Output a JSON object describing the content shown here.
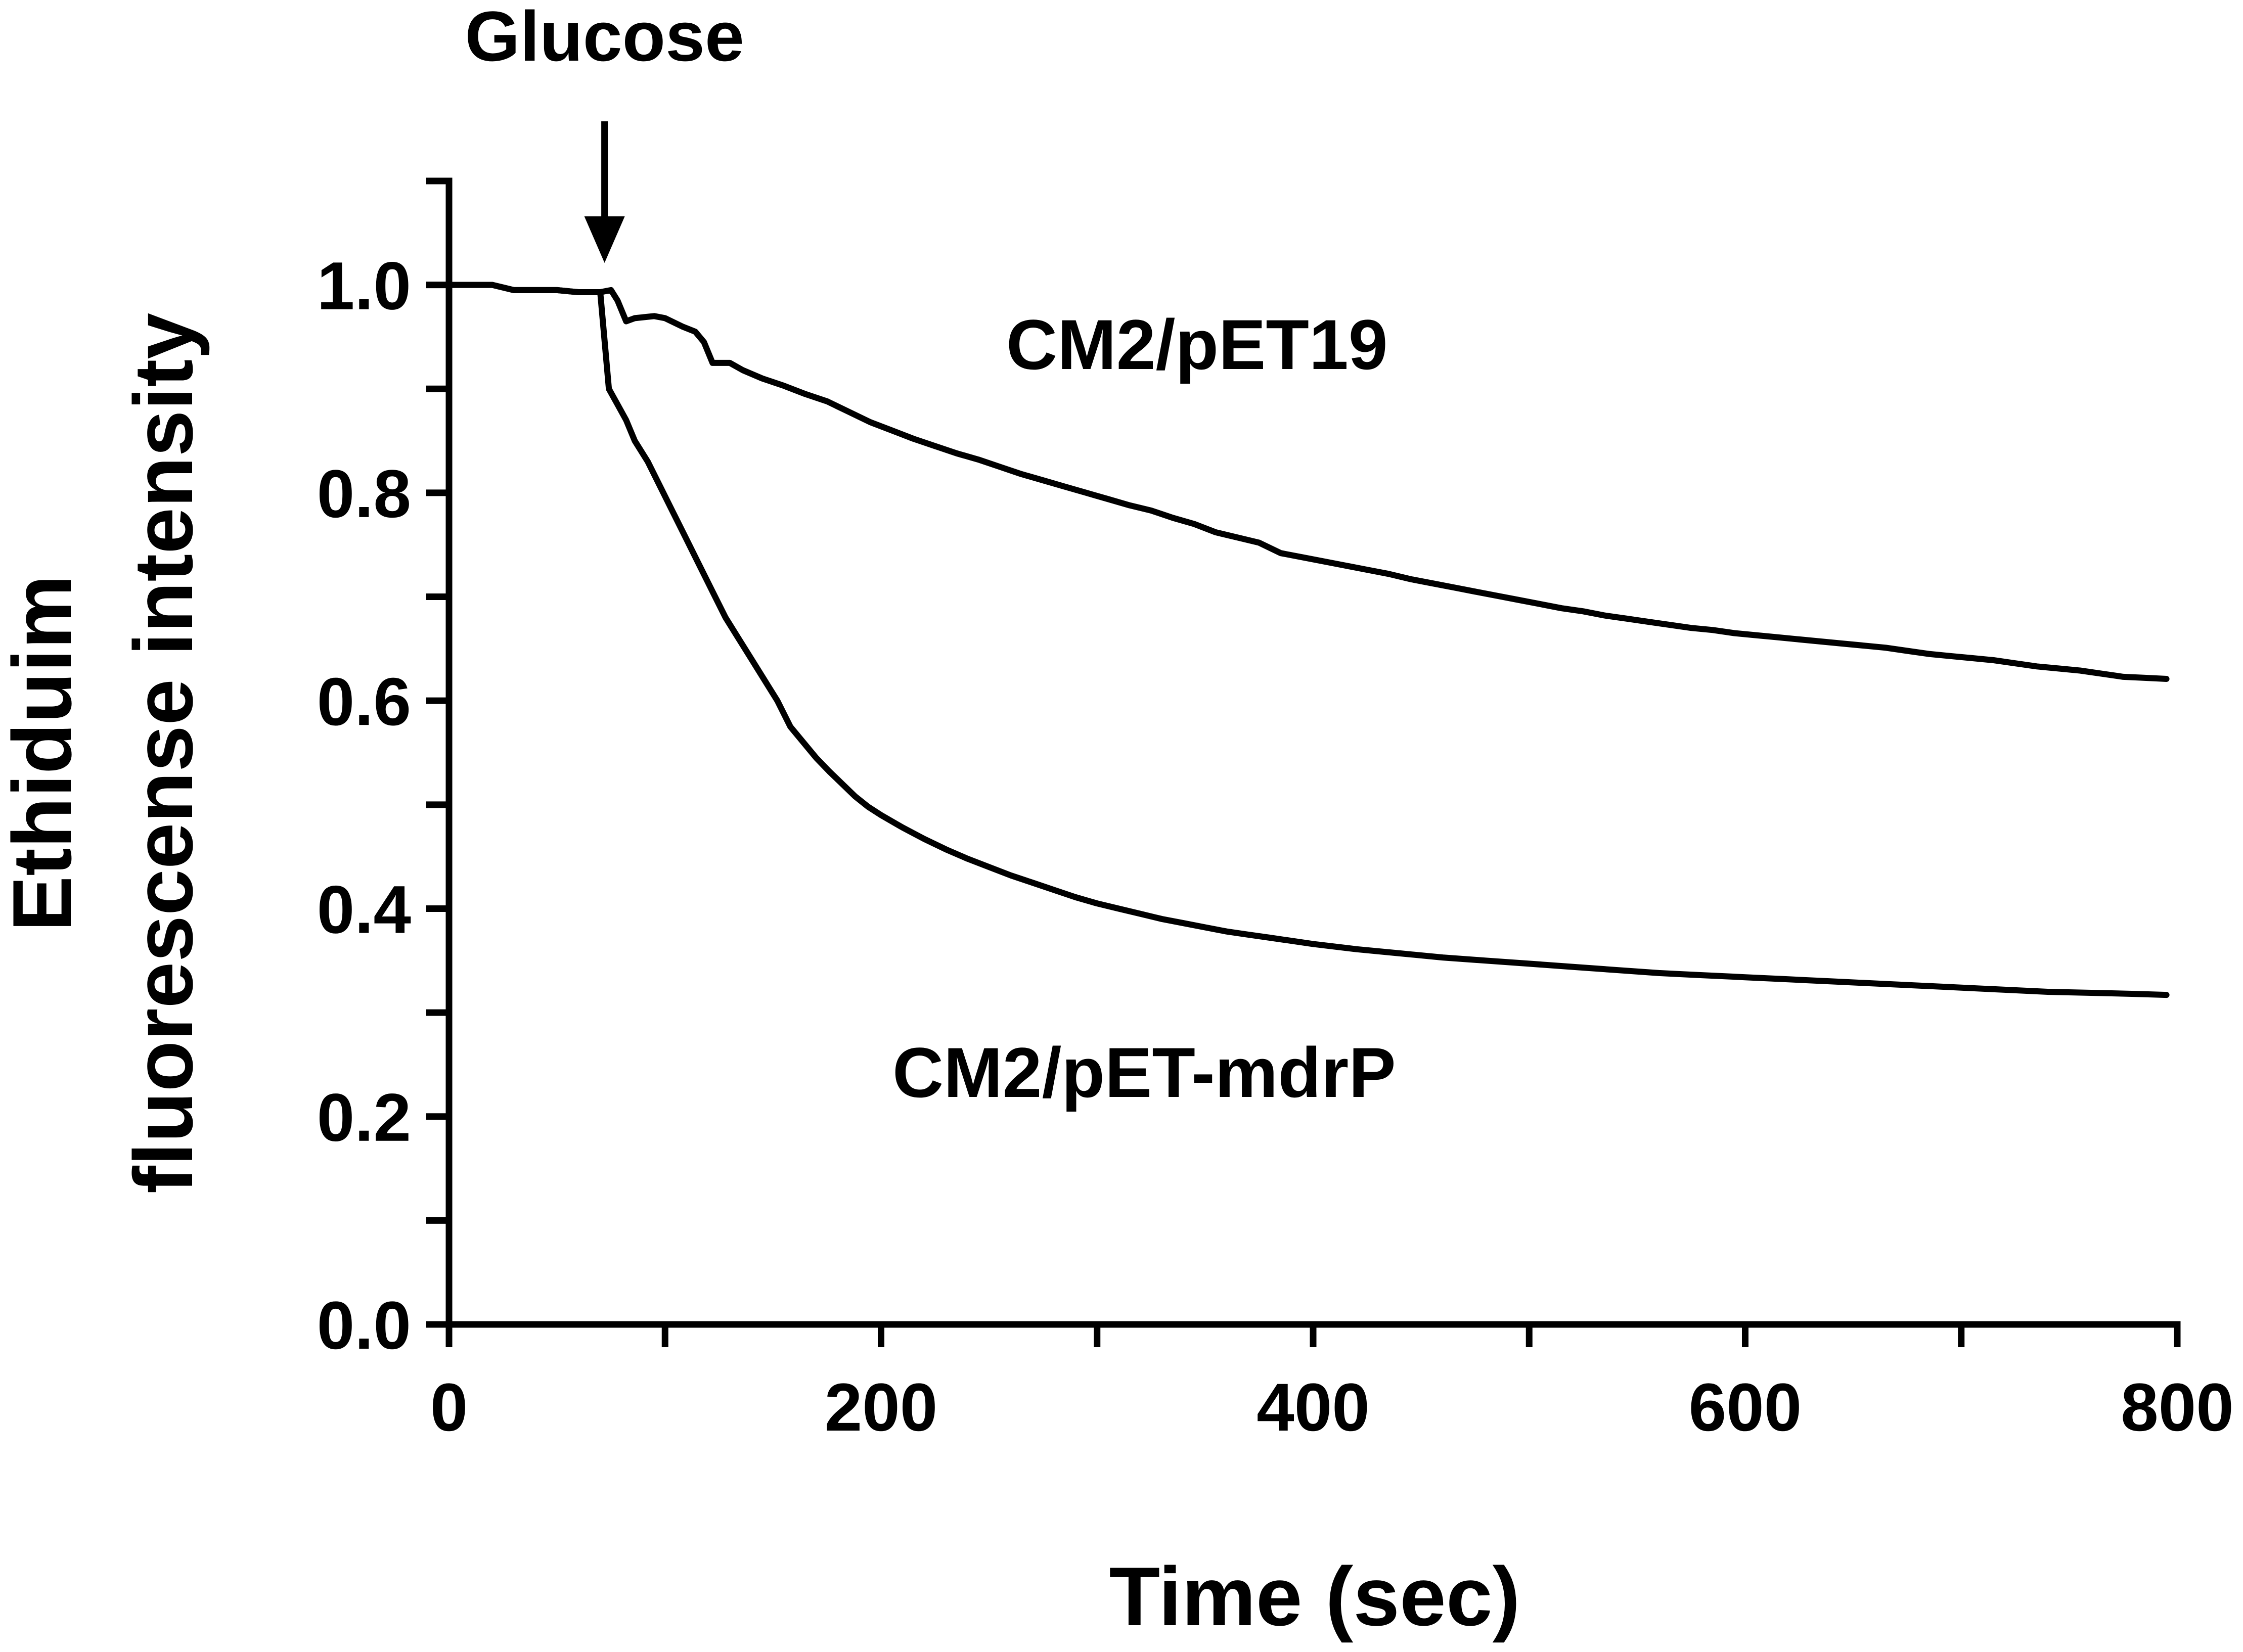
{
  "chart_data": {
    "type": "line",
    "xlabel": "Time (sec)",
    "ylabel_lines": [
      "Ethiduim",
      "fluorescense intensity"
    ],
    "xlim": [
      0,
      800
    ],
    "ylim": [
      0,
      1.1
    ],
    "x_ticks": [
      "0",
      "200",
      "400",
      "600",
      "800"
    ],
    "y_ticks": [
      "0.0",
      "0.2",
      "0.4",
      "0.6",
      "0.8",
      "1.0"
    ],
    "grid": false,
    "annotations": {
      "event_label": "Glucose",
      "event_x": 72,
      "series_labels": [
        "CM2/pET19",
        "CM2/pET-mdrP"
      ]
    },
    "series": [
      {
        "name": "CM2/pET19",
        "points": [
          [
            0,
            1.0
          ],
          [
            20,
            1.0
          ],
          [
            30,
            0.995
          ],
          [
            50,
            0.995
          ],
          [
            60,
            0.993
          ],
          [
            65,
            0.993
          ],
          [
            70,
            0.993
          ],
          [
            75,
            0.995
          ],
          [
            78,
            0.985
          ],
          [
            82,
            0.965
          ],
          [
            86,
            0.968
          ],
          [
            95,
            0.97
          ],
          [
            100,
            0.968
          ],
          [
            108,
            0.96
          ],
          [
            114,
            0.955
          ],
          [
            118,
            0.945
          ],
          [
            122,
            0.925
          ],
          [
            130,
            0.925
          ],
          [
            136,
            0.918
          ],
          [
            145,
            0.91
          ],
          [
            155,
            0.903
          ],
          [
            165,
            0.895
          ],
          [
            175,
            0.888
          ],
          [
            185,
            0.878
          ],
          [
            195,
            0.868
          ],
          [
            205,
            0.86
          ],
          [
            215,
            0.852
          ],
          [
            225,
            0.845
          ],
          [
            235,
            0.838
          ],
          [
            245,
            0.832
          ],
          [
            255,
            0.825
          ],
          [
            265,
            0.818
          ],
          [
            275,
            0.812
          ],
          [
            285,
            0.806
          ],
          [
            295,
            0.8
          ],
          [
            305,
            0.794
          ],
          [
            315,
            0.788
          ],
          [
            325,
            0.783
          ],
          [
            335,
            0.776
          ],
          [
            345,
            0.77
          ],
          [
            355,
            0.762
          ],
          [
            365,
            0.757
          ],
          [
            375,
            0.752
          ],
          [
            385,
            0.742
          ],
          [
            395,
            0.738
          ],
          [
            405,
            0.734
          ],
          [
            415,
            0.73
          ],
          [
            425,
            0.726
          ],
          [
            435,
            0.722
          ],
          [
            445,
            0.717
          ],
          [
            455,
            0.713
          ],
          [
            465,
            0.709
          ],
          [
            475,
            0.705
          ],
          [
            485,
            0.701
          ],
          [
            495,
            0.697
          ],
          [
            505,
            0.693
          ],
          [
            515,
            0.689
          ],
          [
            525,
            0.686
          ],
          [
            535,
            0.682
          ],
          [
            545,
            0.679
          ],
          [
            555,
            0.676
          ],
          [
            565,
            0.673
          ],
          [
            575,
            0.67
          ],
          [
            585,
            0.668
          ],
          [
            595,
            0.665
          ],
          [
            605,
            0.663
          ],
          [
            615,
            0.661
          ],
          [
            625,
            0.659
          ],
          [
            635,
            0.657
          ],
          [
            645,
            0.655
          ],
          [
            655,
            0.653
          ],
          [
            665,
            0.651
          ],
          [
            675,
            0.648
          ],
          [
            685,
            0.645
          ],
          [
            695,
            0.643
          ],
          [
            705,
            0.641
          ],
          [
            715,
            0.639
          ],
          [
            725,
            0.636
          ],
          [
            735,
            0.633
          ],
          [
            745,
            0.631
          ],
          [
            755,
            0.629
          ],
          [
            765,
            0.626
          ],
          [
            775,
            0.623
          ],
          [
            785,
            0.622
          ],
          [
            795,
            0.621
          ]
        ]
      },
      {
        "name": "CM2/pET-mdrP",
        "points": [
          [
            0,
            1.0
          ],
          [
            20,
            1.0
          ],
          [
            30,
            0.995
          ],
          [
            50,
            0.995
          ],
          [
            60,
            0.993
          ],
          [
            70,
            0.993
          ],
          [
            74,
            0.9
          ],
          [
            78,
            0.885
          ],
          [
            82,
            0.87
          ],
          [
            86,
            0.85
          ],
          [
            92,
            0.83
          ],
          [
            98,
            0.805
          ],
          [
            104,
            0.78
          ],
          [
            110,
            0.755
          ],
          [
            116,
            0.73
          ],
          [
            122,
            0.705
          ],
          [
            128,
            0.68
          ],
          [
            134,
            0.66
          ],
          [
            140,
            0.64
          ],
          [
            146,
            0.62
          ],
          [
            152,
            0.6
          ],
          [
            158,
            0.575
          ],
          [
            164,
            0.56
          ],
          [
            170,
            0.545
          ],
          [
            176,
            0.532
          ],
          [
            182,
            0.52
          ],
          [
            188,
            0.508
          ],
          [
            194,
            0.498
          ],
          [
            200,
            0.49
          ],
          [
            210,
            0.478
          ],
          [
            220,
            0.467
          ],
          [
            230,
            0.457
          ],
          [
            240,
            0.448
          ],
          [
            250,
            0.44
          ],
          [
            260,
            0.432
          ],
          [
            270,
            0.425
          ],
          [
            280,
            0.418
          ],
          [
            290,
            0.411
          ],
          [
            300,
            0.405
          ],
          [
            310,
            0.4
          ],
          [
            320,
            0.395
          ],
          [
            330,
            0.39
          ],
          [
            340,
            0.386
          ],
          [
            350,
            0.382
          ],
          [
            360,
            0.378
          ],
          [
            370,
            0.375
          ],
          [
            380,
            0.372
          ],
          [
            390,
            0.369
          ],
          [
            400,
            0.366
          ],
          [
            420,
            0.361
          ],
          [
            440,
            0.357
          ],
          [
            460,
            0.353
          ],
          [
            480,
            0.35
          ],
          [
            500,
            0.347
          ],
          [
            520,
            0.344
          ],
          [
            540,
            0.341
          ],
          [
            560,
            0.338
          ],
          [
            580,
            0.336
          ],
          [
            600,
            0.334
          ],
          [
            620,
            0.332
          ],
          [
            640,
            0.33
          ],
          [
            660,
            0.328
          ],
          [
            680,
            0.326
          ],
          [
            700,
            0.324
          ],
          [
            720,
            0.322
          ],
          [
            740,
            0.32
          ],
          [
            760,
            0.319
          ],
          [
            780,
            0.318
          ],
          [
            795,
            0.317
          ]
        ]
      }
    ]
  }
}
